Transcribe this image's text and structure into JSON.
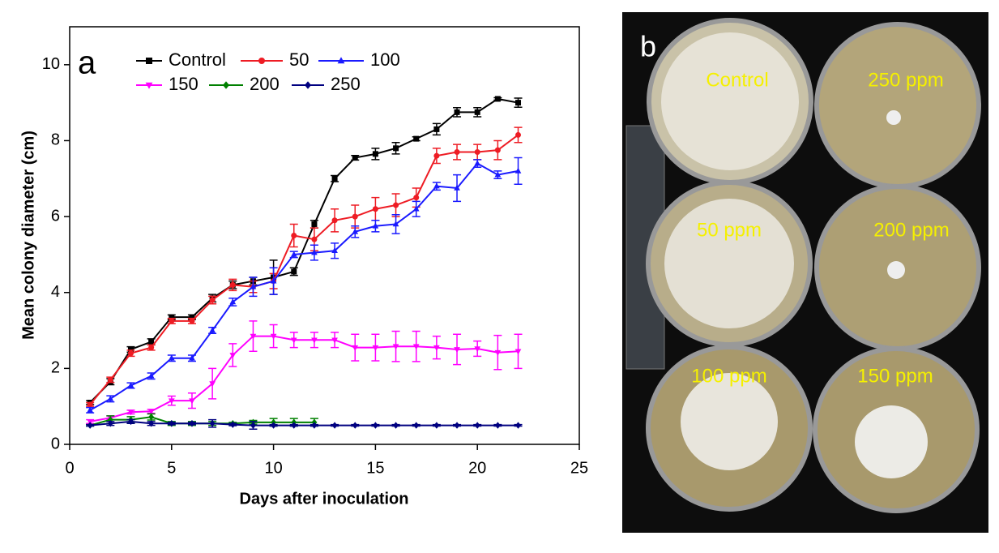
{
  "chart_data": {
    "type": "line",
    "annotation": "a",
    "xlabel": "Days after inoculation",
    "ylabel": "Mean colony diameter (cm)",
    "xlim": [
      0,
      25
    ],
    "xticks": [
      0,
      5,
      10,
      15,
      20,
      25
    ],
    "ylim": [
      0,
      11
    ],
    "yticks": [
      0,
      2,
      4,
      6,
      8,
      10
    ],
    "x": [
      1,
      2,
      3,
      4,
      5,
      6,
      7,
      8,
      9,
      10,
      11,
      12,
      13,
      14,
      15,
      16,
      17,
      18,
      19,
      20,
      21,
      22
    ],
    "series": [
      {
        "name": "Control",
        "color": "#000000",
        "marker": "square",
        "values": [
          1.1,
          1.65,
          2.5,
          2.7,
          3.35,
          3.35,
          3.85,
          4.2,
          4.3,
          4.4,
          4.55,
          5.8,
          7.0,
          7.55,
          7.65,
          7.8,
          8.05,
          8.3,
          8.75,
          8.75,
          9.1,
          9.0
        ],
        "errors": [
          0.05,
          0.08,
          0.07,
          0.08,
          0.06,
          0.06,
          0.1,
          0.1,
          0.1,
          0.45,
          0.1,
          0.1,
          0.08,
          0.06,
          0.15,
          0.15,
          0.05,
          0.15,
          0.12,
          0.12,
          0.03,
          0.12
        ]
      },
      {
        "name": "50",
        "color": "#ee1c24",
        "marker": "circle",
        "values": [
          1.05,
          1.7,
          2.4,
          2.55,
          3.25,
          3.25,
          3.8,
          4.2,
          4.15,
          4.3,
          5.5,
          5.4,
          5.9,
          6.0,
          6.2,
          6.3,
          6.5,
          7.6,
          7.7,
          7.7,
          7.75,
          8.15
        ],
        "errors": [
          0.05,
          0.07,
          0.08,
          0.07,
          0.07,
          0.07,
          0.1,
          0.15,
          0.15,
          0.2,
          0.3,
          0.3,
          0.3,
          0.3,
          0.3,
          0.3,
          0.25,
          0.2,
          0.2,
          0.2,
          0.25,
          0.2
        ]
      },
      {
        "name": "100",
        "color": "#1a1aff",
        "marker": "triangle-up",
        "values": [
          0.9,
          1.2,
          1.55,
          1.8,
          2.27,
          2.27,
          3.0,
          3.75,
          4.15,
          4.3,
          5.0,
          5.05,
          5.1,
          5.6,
          5.75,
          5.8,
          6.2,
          6.8,
          6.75,
          7.4,
          7.1,
          7.2
        ],
        "errors": [
          0.07,
          0.08,
          0.07,
          0.08,
          0.08,
          0.08,
          0.08,
          0.1,
          0.25,
          0.35,
          0.08,
          0.2,
          0.2,
          0.15,
          0.15,
          0.25,
          0.2,
          0.1,
          0.35,
          0.1,
          0.1,
          0.35
        ]
      },
      {
        "name": "150",
        "color": "#ff00ff",
        "marker": "triangle-down",
        "values": [
          0.6,
          0.7,
          0.85,
          0.87,
          1.15,
          1.15,
          1.6,
          2.35,
          2.85,
          2.85,
          2.75,
          2.75,
          2.75,
          2.55,
          2.55,
          2.58,
          2.58,
          2.55,
          2.5,
          2.52,
          2.42,
          2.45
        ],
        "errors": [
          0.05,
          0.05,
          0.05,
          0.05,
          0.12,
          0.2,
          0.4,
          0.3,
          0.4,
          0.3,
          0.2,
          0.2,
          0.2,
          0.35,
          0.35,
          0.4,
          0.4,
          0.3,
          0.4,
          0.2,
          0.45,
          0.45
        ]
      },
      {
        "name": "200",
        "color": "#008000",
        "marker": "diamond",
        "values": [
          0.5,
          0.65,
          0.65,
          0.72,
          0.55,
          0.55,
          0.55,
          0.55,
          0.58,
          0.58,
          0.58,
          0.58,
          null,
          null,
          null,
          null,
          null,
          null,
          null,
          null,
          null,
          null
        ],
        "errors": [
          0.02,
          0.1,
          0.08,
          0.08,
          0.05,
          0.05,
          0.05,
          0.03,
          0.05,
          0.1,
          0.1,
          0.1,
          null,
          null,
          null,
          null,
          null,
          null,
          null,
          null,
          null,
          null
        ]
      },
      {
        "name": "250",
        "color": "#000080",
        "marker": "diamond",
        "values": [
          0.5,
          0.55,
          0.6,
          0.55,
          0.55,
          0.55,
          0.55,
          0.52,
          0.5,
          0.5,
          0.5,
          0.5,
          0.5,
          0.5,
          0.5,
          0.5,
          0.5,
          0.5,
          0.5,
          0.5,
          0.5,
          0.5
        ],
        "errors": [
          0.02,
          0.05,
          0.05,
          0.05,
          0.03,
          0.03,
          0.1,
          0.03,
          0.1,
          0.02,
          0.02,
          0.02,
          0.02,
          0.02,
          0.02,
          0.02,
          0.02,
          0.02,
          0.02,
          0.02,
          0.02,
          0.02
        ]
      }
    ]
  },
  "photo": {
    "panel_label": "b",
    "labels": [
      "Control",
      "250 ppm",
      "50 ppm",
      "200 ppm",
      "100 ppm",
      "150 ppm"
    ]
  }
}
